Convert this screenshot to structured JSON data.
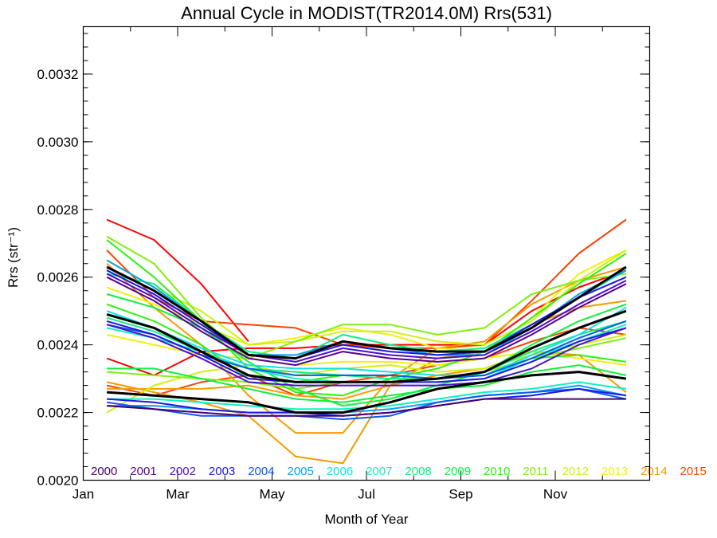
{
  "chart_data": {
    "type": "line",
    "title": "Annual Cycle in MODIST(TR2014.0M) Rrs(531)",
    "xlabel": "Month of Year",
    "ylabel": "Rrs (str⁻¹)",
    "xlim": [
      1,
      13
    ],
    "ylim": [
      0.002,
      0.00334
    ],
    "x_ticks": [
      {
        "value": 1,
        "label": "Jan"
      },
      {
        "value": 3,
        "label": "Mar"
      },
      {
        "value": 5,
        "label": "May"
      },
      {
        "value": 7,
        "label": "Jul"
      },
      {
        "value": 9,
        "label": "Sep"
      },
      {
        "value": 11,
        "label": "Nov"
      }
    ],
    "y_ticks": [
      {
        "value": 0.002,
        "label": "0.0020"
      },
      {
        "value": 0.0022,
        "label": "0.0022"
      },
      {
        "value": 0.0024,
        "label": "0.0024"
      },
      {
        "value": 0.0026,
        "label": "0.0026"
      },
      {
        "value": 0.0028,
        "label": "0.0028"
      },
      {
        "value": 0.003,
        "label": "0.0030"
      },
      {
        "value": 0.0032,
        "label": "0.0032"
      }
    ],
    "x": [
      1.5,
      2.5,
      3.5,
      4.5,
      5.5,
      6.5,
      7.5,
      8.5,
      9.5,
      10.5,
      11.5,
      12.5
    ],
    "legend_position": "bottom inside plot",
    "legend": [
      {
        "label": "2000",
        "color": "#4a0070"
      },
      {
        "label": "2001",
        "color": "#5a0090"
      },
      {
        "label": "2002",
        "color": "#4b10cc"
      },
      {
        "label": "2003",
        "color": "#1a18e6"
      },
      {
        "label": "2004",
        "color": "#0a5af2"
      },
      {
        "label": "2005",
        "color": "#0aa0f0"
      },
      {
        "label": "2006",
        "color": "#10e0e8"
      },
      {
        "label": "2007",
        "color": "#10f0c0"
      },
      {
        "label": "2008",
        "color": "#10ee80"
      },
      {
        "label": "2009",
        "color": "#10f040"
      },
      {
        "label": "2010",
        "color": "#30f010"
      },
      {
        "label": "2011",
        "color": "#80f010"
      },
      {
        "label": "2012",
        "color": "#d0f010"
      },
      {
        "label": "2013",
        "color": "#f0f010"
      },
      {
        "label": "2014",
        "color": "#f89a00"
      },
      {
        "label": "2015",
        "color": "#f84400"
      }
    ],
    "series": [
      {
        "color": "#ff0000",
        "values": [
          0.00277,
          0.00271,
          0.00258,
          0.00241,
          null,
          null,
          null,
          null,
          null,
          null,
          null,
          null
        ]
      },
      {
        "color": "#ff0000",
        "values": [
          0.00236,
          0.00231,
          0.00238,
          0.00239,
          0.00239,
          0.0024,
          0.0024,
          0.0024,
          0.0024,
          0.0025,
          0.00257,
          0.00262
        ]
      },
      {
        "color": "#f84400",
        "values": [
          0.00268,
          0.00254,
          0.00247,
          0.00246,
          0.00245,
          0.0024,
          0.00239,
          0.00239,
          0.0024,
          0.00253,
          0.00267,
          0.00277
        ]
      },
      {
        "color": "#f84400",
        "values": [
          0.00228,
          0.00225,
          0.00229,
          0.00231,
          0.00225,
          0.00229,
          0.00231,
          0.00234,
          0.00236,
          0.00241,
          0.00245,
          0.00243
        ]
      },
      {
        "color": "#f89a00",
        "values": [
          0.00264,
          0.00251,
          0.0024,
          0.00225,
          0.00214,
          0.00214,
          0.0023,
          0.00239,
          0.00241,
          0.00252,
          0.00259,
          0.00263
        ]
      },
      {
        "color": "#f89a00",
        "values": [
          0.00229,
          0.00226,
          0.00223,
          0.00219,
          0.00207,
          0.00205,
          0.00228,
          0.00236,
          0.00238,
          0.00246,
          0.00251,
          0.00253
        ]
      },
      {
        "color": "#f89a00",
        "values": [
          0.00227,
          0.00227,
          0.00227,
          0.00228,
          0.00225,
          0.00224,
          0.00228,
          0.00231,
          0.00233,
          0.00238,
          0.00237,
          0.00226
        ]
      },
      {
        "color": "#f0f010",
        "values": [
          0.00257,
          0.00252,
          0.00246,
          0.0024,
          0.00242,
          0.00245,
          0.00243,
          0.00239,
          0.00238,
          0.00248,
          0.00261,
          0.00268
        ]
      },
      {
        "color": "#f0f010",
        "values": [
          0.00243,
          0.0024,
          0.00237,
          0.00236,
          0.00234,
          0.00235,
          0.00235,
          0.00234,
          0.00236,
          0.00238,
          0.00236,
          0.00234
        ]
      },
      {
        "color": "#d0f010",
        "values": [
          0.0022,
          0.00228,
          0.00232,
          0.00234,
          0.00231,
          0.00233,
          0.00234,
          0.00232,
          0.00233,
          0.00237,
          0.0024,
          0.00243
        ]
      },
      {
        "color": "#d0f010",
        "values": [
          0.00265,
          0.00257,
          0.0025,
          0.0024,
          0.00241,
          0.00244,
          0.00244,
          0.00241,
          0.0024,
          0.00247,
          0.00259,
          0.00268
        ]
      },
      {
        "color": "#80f010",
        "values": [
          0.00272,
          0.00264,
          0.00248,
          0.00236,
          0.00241,
          0.00246,
          0.00246,
          0.00243,
          0.00245,
          0.00255,
          0.00259,
          0.00261
        ]
      },
      {
        "color": "#80f010",
        "values": [
          0.00232,
          0.00231,
          0.0023,
          0.00229,
          0.00227,
          0.00229,
          0.00229,
          0.0023,
          0.00232,
          0.00236,
          0.00239,
          0.00242
        ]
      },
      {
        "color": "#30f010",
        "values": [
          0.00271,
          0.0026,
          0.00247,
          0.00233,
          0.00226,
          0.00225,
          0.0023,
          0.00233,
          0.00238,
          0.00248,
          0.00258,
          0.00267
        ]
      },
      {
        "color": "#30f010",
        "values": [
          0.00252,
          0.00247,
          0.0024,
          0.0023,
          0.00229,
          0.00231,
          0.00231,
          0.0023,
          0.00231,
          0.00236,
          0.00237,
          0.00235
        ]
      },
      {
        "color": "#10f040",
        "values": [
          0.00255,
          0.00251,
          0.00245,
          0.00235,
          0.00227,
          0.00222,
          0.00224,
          0.00228,
          0.00232,
          0.0024,
          0.00247,
          0.00252
        ]
      },
      {
        "color": "#10f040",
        "values": [
          0.00233,
          0.00233,
          0.0023,
          0.00227,
          0.00224,
          0.00223,
          0.00225,
          0.00227,
          0.00228,
          0.00232,
          0.00234,
          0.00231
        ]
      },
      {
        "color": "#10ee80",
        "values": [
          0.00248,
          0.00244,
          0.00238,
          0.00233,
          0.00232,
          0.00231,
          0.0023,
          0.0023,
          0.00232,
          0.00238,
          0.00243,
          0.00247
        ]
      },
      {
        "color": "#10ee80",
        "values": [
          0.00261,
          0.00258,
          0.00247,
          0.00238,
          0.00236,
          0.00243,
          0.0024,
          0.00238,
          0.00239,
          0.00246,
          0.00254,
          0.00262
        ]
      },
      {
        "color": "#10f0c0",
        "values": [
          0.00245,
          0.00242,
          0.00238,
          0.00233,
          0.0023,
          0.00229,
          0.00229,
          0.00229,
          0.0023,
          0.00236,
          0.00241,
          0.00246
        ]
      },
      {
        "color": "#10f0c0",
        "values": [
          0.00224,
          0.00224,
          0.00223,
          0.00222,
          0.00221,
          0.00221,
          0.00222,
          0.00224,
          0.00226,
          0.00227,
          0.00229,
          0.00227
        ]
      },
      {
        "color": "#10e0e8",
        "values": [
          0.0025,
          0.00245,
          0.00239,
          0.00234,
          0.00233,
          0.00233,
          0.00232,
          0.00231,
          0.00231,
          0.00237,
          0.00243,
          0.00251
        ]
      },
      {
        "color": "#0aa0f0",
        "values": [
          0.00265,
          0.00257,
          0.00247,
          0.00237,
          0.00237,
          0.00241,
          0.00239,
          0.00237,
          0.00237,
          0.00245,
          0.00255,
          0.00262
        ]
      },
      {
        "color": "#0aa0f0",
        "values": [
          0.00222,
          0.00222,
          0.00221,
          0.0022,
          0.0022,
          0.0022,
          0.00221,
          0.00223,
          0.00225,
          0.00226,
          0.00228,
          0.00225
        ]
      },
      {
        "color": "#0a5af2",
        "values": [
          0.00246,
          0.00243,
          0.00237,
          0.00233,
          0.00231,
          0.00231,
          0.00231,
          0.0023,
          0.00231,
          0.00236,
          0.00242,
          0.00247
        ]
      },
      {
        "color": "#0a5af2",
        "values": [
          0.00223,
          0.00221,
          0.00219,
          0.00219,
          0.00219,
          0.00218,
          0.00219,
          0.00223,
          0.00225,
          0.00226,
          0.00227,
          0.00224
        ]
      },
      {
        "color": "#1a18e6",
        "values": [
          0.00262,
          0.00255,
          0.00246,
          0.00237,
          0.00236,
          0.0024,
          0.00238,
          0.00237,
          0.00238,
          0.00246,
          0.00254,
          0.0026
        ]
      },
      {
        "color": "#1a18e6",
        "values": [
          0.00247,
          0.00243,
          0.00237,
          0.0023,
          0.00229,
          0.00229,
          0.00229,
          0.00229,
          0.0023,
          0.00235,
          0.00241,
          0.00245
        ]
      },
      {
        "color": "#1a18e6",
        "values": [
          0.00224,
          0.00223,
          0.00221,
          0.0022,
          0.0022,
          0.00219,
          0.0022,
          0.00222,
          0.00224,
          0.00225,
          0.00227,
          0.00225
        ]
      },
      {
        "color": "#4b10cc",
        "values": [
          0.00261,
          0.00254,
          0.00245,
          0.00237,
          0.00235,
          0.00239,
          0.00237,
          0.00236,
          0.00237,
          0.00244,
          0.00252,
          0.00259
        ]
      },
      {
        "color": "#4b10cc",
        "values": [
          0.00246,
          0.00242,
          0.00236,
          0.00229,
          0.00228,
          0.00228,
          0.00228,
          0.00228,
          0.00229,
          0.00233,
          0.0024,
          0.00245
        ]
      },
      {
        "color": "#5a0090",
        "values": [
          0.0026,
          0.00253,
          0.00244,
          0.00236,
          0.00234,
          0.00238,
          0.00236,
          0.00235,
          0.00236,
          0.00243,
          0.00251,
          0.00258
        ]
      },
      {
        "color": "#4a0070",
        "values": [
          0.00222,
          0.00221,
          0.0022,
          0.00219,
          0.00219,
          0.00219,
          0.0022,
          0.00222,
          0.00224,
          0.00224,
          0.00224,
          0.00224
        ]
      },
      {
        "color": "#000000",
        "width": 3,
        "values": [
          0.00263,
          0.00256,
          0.00247,
          0.00237,
          0.00236,
          0.00241,
          0.00239,
          0.00238,
          0.00238,
          0.00245,
          0.00254,
          0.00263
        ]
      },
      {
        "color": "#000000",
        "width": 3,
        "values": [
          0.00249,
          0.00245,
          0.00238,
          0.00231,
          0.00229,
          0.00229,
          0.00229,
          0.0023,
          0.00232,
          0.00239,
          0.00245,
          0.0025
        ]
      },
      {
        "color": "#000000",
        "width": 3,
        "values": [
          0.00226,
          0.00225,
          0.00224,
          0.00223,
          0.0022,
          0.0022,
          0.00223,
          0.00227,
          0.00229,
          0.00231,
          0.00232,
          0.0023
        ]
      }
    ]
  }
}
